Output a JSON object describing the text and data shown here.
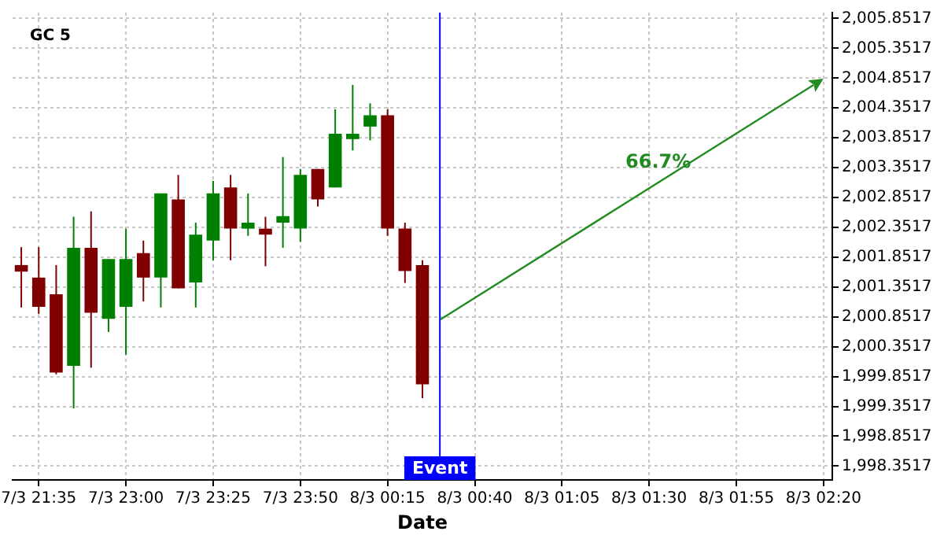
{
  "chart_data": {
    "type": "candlestick",
    "title": "GC 5",
    "xlabel": "Date",
    "categories": [
      null,
      "7/3 21:35",
      null,
      null,
      null,
      null,
      "7/3 23:00",
      null,
      null,
      null,
      null,
      "7/3 23:25",
      null,
      null,
      null,
      null,
      "7/3 23:50",
      null,
      null,
      null,
      null,
      "8/3 00:15",
      null,
      null,
      null,
      null,
      "8/3 00:40",
      null,
      null,
      null,
      null,
      "8/3 01:05",
      null,
      null,
      null,
      null,
      "8/3 01:30",
      null,
      null,
      null,
      null,
      "8/3 01:55",
      null,
      null,
      null,
      null,
      "8/3 02:20"
    ],
    "ohlc": [
      [
        2001.72,
        2002.02,
        2001.01,
        2001.61
      ],
      [
        2001.51,
        2002.02,
        2000.9,
        2001.02
      ],
      [
        2001.23,
        2001.72,
        1999.89,
        1999.92
      ],
      [
        2000.03,
        2002.53,
        1999.32,
        2002.01
      ],
      [
        2002.01,
        2002.62,
        2000.0,
        2000.92
      ],
      [
        2000.82,
        2001.82,
        2000.6,
        2001.82
      ],
      [
        2001.02,
        2002.33,
        2000.22,
        2001.82
      ],
      [
        2001.92,
        2002.13,
        2001.11,
        2001.51
      ],
      [
        2001.51,
        2002.92,
        2001.01,
        2002.92
      ],
      [
        2002.82,
        2003.23,
        2001.33,
        2001.33
      ],
      [
        2001.43,
        2002.43,
        2001.01,
        2002.23
      ],
      [
        2002.13,
        2003.13,
        2001.8,
        2002.92
      ],
      [
        2003.02,
        2003.23,
        2001.8,
        2002.33
      ],
      [
        2002.33,
        2002.92,
        2002.21,
        2002.43
      ],
      [
        2002.33,
        2002.53,
        2001.7,
        2002.23
      ],
      [
        2002.43,
        2003.53,
        2002.01,
        2002.54
      ],
      [
        2002.33,
        2003.33,
        2002.11,
        2003.23
      ],
      [
        2003.33,
        2003.33,
        2002.7,
        2002.82
      ],
      [
        2003.02,
        2004.33,
        2003.02,
        2003.92
      ],
      [
        2003.83,
        2004.74,
        2003.64,
        2003.92
      ],
      [
        2004.04,
        2004.43,
        2003.81,
        2004.23
      ],
      [
        2004.23,
        2004.33,
        2002.21,
        2002.33
      ],
      [
        2002.33,
        2002.43,
        2001.42,
        2001.62
      ],
      [
        2001.72,
        2001.8,
        1999.49,
        1999.72
      ],
      null,
      null,
      null,
      null,
      null,
      null,
      null,
      null,
      null,
      null,
      null,
      null,
      null,
      null,
      null,
      null,
      null,
      null,
      null,
      null,
      null,
      null,
      null
    ],
    "colors": [
      "#800000",
      "#800000",
      "#800000",
      "#008000",
      "#800000",
      "#008000",
      "#008000",
      "#800000",
      "#008000",
      "#800000",
      "#008000",
      "#008000",
      "#800000",
      "#008000",
      "#800000",
      "#008000",
      "#008000",
      "#800000",
      "#008000",
      "#008000",
      "#008000",
      "#800000",
      "#800000",
      "#800000",
      null,
      null,
      null,
      null,
      null,
      null,
      null,
      null,
      null,
      null,
      null,
      null,
      null,
      null,
      null,
      null,
      null,
      null,
      null,
      null,
      null,
      null,
      null
    ],
    "annotations": [
      "66.7%",
      "Event"
    ],
    "ylim": [
      1998.12,
      2005.95
    ],
    "yticks": [
      {
        "value": 1998.3517,
        "label": "1,998.3517"
      },
      {
        "value": 1998.8517,
        "label": "1,998.8517"
      },
      {
        "value": 1999.3517,
        "label": "1,999.3517"
      },
      {
        "value": 1999.8517,
        "label": "1,999.8517"
      },
      {
        "value": 2000.3517,
        "label": "2,000.3517"
      },
      {
        "value": 2000.8517,
        "label": "2,000.8517"
      },
      {
        "value": 2001.3517,
        "label": "2,001.3517"
      },
      {
        "value": 2001.8517,
        "label": "2,001.8517"
      },
      {
        "value": 2002.3517,
        "label": "2,002.3517"
      },
      {
        "value": 2002.8517,
        "label": "2,002.8517"
      },
      {
        "value": 2003.3517,
        "label": "2,003.3517"
      },
      {
        "value": 2003.8517,
        "label": "2,003.8517"
      },
      {
        "value": 2004.3517,
        "label": "2,004.3517"
      },
      {
        "value": 2004.8517,
        "label": "2,004.8517"
      },
      {
        "value": 2005.3517,
        "label": "2,005.3517"
      },
      {
        "value": 2005.8517,
        "label": "2,005.8517"
      }
    ],
    "grid": true
  }
}
